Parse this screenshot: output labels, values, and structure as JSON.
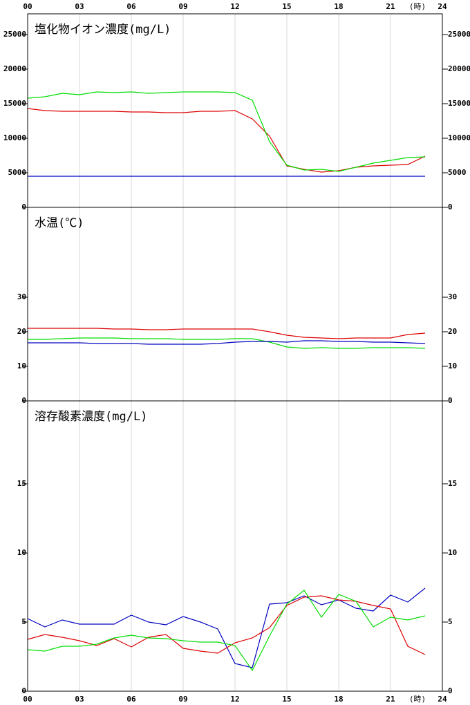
{
  "chart_data": [
    {
      "type": "line",
      "title": "塩化物イオン濃度(mg/L)",
      "x_unit": "(時)",
      "x": [
        0,
        1,
        2,
        3,
        4,
        5,
        6,
        7,
        8,
        9,
        10,
        11,
        12,
        13,
        14,
        15,
        16,
        17,
        18,
        19,
        20,
        21,
        22,
        23
      ],
      "xlim": [
        0,
        24
      ],
      "xticks": [
        {
          "value": 0,
          "label": "00"
        },
        {
          "value": 3,
          "label": "03"
        },
        {
          "value": 6,
          "label": "06"
        },
        {
          "value": 9,
          "label": "09"
        },
        12,
        15,
        18,
        21,
        24
      ],
      "ylim": [
        0,
        28000
      ],
      "yticks": [
        0,
        5000,
        10000,
        15000,
        20000,
        25000
      ],
      "series": [
        {
          "color": "#dd0000",
          "values": [
            14300,
            14000,
            13900,
            13900,
            13900,
            13900,
            13800,
            13800,
            13700,
            13700,
            13900,
            13900,
            14000,
            12800,
            10300,
            6000,
            5500,
            5100,
            5300,
            5800,
            6000,
            6100,
            6200,
            7400
          ]
        },
        {
          "color": "#00dd00",
          "values": [
            15800,
            16000,
            16500,
            16300,
            16700,
            16600,
            16700,
            16500,
            16600,
            16700,
            16700,
            16700,
            16600,
            15500,
            9500,
            6100,
            5400,
            5500,
            5200,
            5800,
            6400,
            6800,
            7200,
            7300
          ]
        },
        {
          "color": "#0000c0",
          "values": [
            4500,
            4500,
            4500,
            4500,
            4500,
            4500,
            4500,
            4500,
            4500,
            4500,
            4500,
            4500,
            4500,
            4500,
            4500,
            4500,
            4500,
            4500,
            4500,
            4500,
            4500,
            4500,
            4500,
            4500
          ]
        }
      ]
    },
    {
      "type": "line",
      "title": "水温(℃)",
      "x": [
        0,
        1,
        2,
        3,
        4,
        5,
        6,
        7,
        8,
        9,
        10,
        11,
        12,
        13,
        14,
        15,
        16,
        17,
        18,
        19,
        20,
        21,
        22,
        23
      ],
      "xlim": [
        0,
        24
      ],
      "xticks": [
        0,
        3,
        6,
        9,
        12,
        15,
        18,
        21,
        24
      ],
      "ylim": [
        0,
        56
      ],
      "yticks": [
        0,
        10,
        20,
        30
      ],
      "series": [
        {
          "color": "#dd0000",
          "values": [
            21,
            21,
            21,
            21,
            21,
            20.8,
            20.8,
            20.6,
            20.6,
            20.8,
            20.8,
            20.8,
            20.8,
            20.8,
            20,
            19,
            18.4,
            18.2,
            18,
            18.2,
            18.2,
            18.2,
            19.2,
            19.6
          ]
        },
        {
          "color": "#00dd00",
          "values": [
            17.8,
            17.8,
            18,
            18.2,
            18.2,
            18.2,
            18,
            18,
            18,
            17.8,
            17.8,
            17.8,
            18,
            18,
            17,
            15.6,
            15.2,
            15.4,
            15.2,
            15.2,
            15.4,
            15.4,
            15.4,
            15.2
          ]
        },
        {
          "color": "#0000c0",
          "values": [
            16.8,
            16.8,
            16.8,
            16.8,
            16.6,
            16.6,
            16.6,
            16.4,
            16.4,
            16.4,
            16.4,
            16.6,
            17,
            17.2,
            17.2,
            17,
            17.4,
            17.4,
            17.2,
            17.2,
            17,
            17,
            16.8,
            16.6
          ]
        }
      ]
    },
    {
      "type": "line",
      "title": "溶存酸素濃度(mg/L)",
      "x_unit": "(時)",
      "x": [
        0,
        1,
        2,
        3,
        4,
        5,
        6,
        7,
        8,
        9,
        10,
        11,
        12,
        13,
        14,
        15,
        16,
        17,
        18,
        19,
        20,
        21,
        22,
        23
      ],
      "xlim": [
        0,
        24
      ],
      "xticks": [
        {
          "value": 0,
          "label": "00"
        },
        {
          "value": 3,
          "label": "03"
        },
        {
          "value": 6,
          "label": "06"
        },
        {
          "value": 9,
          "label": "09"
        },
        12,
        15,
        18,
        21,
        24
      ],
      "ylim": [
        0,
        21
      ],
      "yticks": [
        0,
        5,
        10,
        15
      ],
      "series": [
        {
          "color": "#0000c0",
          "values": [
            5.25,
            4.65,
            5.15,
            4.85,
            4.85,
            4.85,
            5.5,
            5.0,
            4.8,
            5.4,
            5.0,
            4.5,
            2.0,
            1.7,
            6.3,
            6.4,
            6.9,
            6.25,
            6.6,
            6.0,
            5.8,
            6.95,
            6.45,
            7.45
          ]
        },
        {
          "color": "#dd0000",
          "values": [
            3.75,
            4.1,
            3.9,
            3.65,
            3.3,
            3.8,
            3.2,
            3.9,
            4.1,
            3.1,
            2.9,
            2.75,
            3.5,
            3.85,
            4.6,
            6.2,
            6.8,
            6.9,
            6.6,
            6.5,
            6.2,
            5.95,
            3.25,
            2.65
          ]
        },
        {
          "color": "#00dd00",
          "values": [
            3.0,
            2.9,
            3.25,
            3.25,
            3.4,
            3.85,
            4.05,
            3.85,
            3.8,
            3.65,
            3.55,
            3.55,
            3.3,
            1.5,
            4.0,
            6.3,
            7.3,
            5.35,
            7.0,
            6.5,
            4.65,
            5.35,
            5.15,
            5.45
          ]
        }
      ]
    }
  ]
}
